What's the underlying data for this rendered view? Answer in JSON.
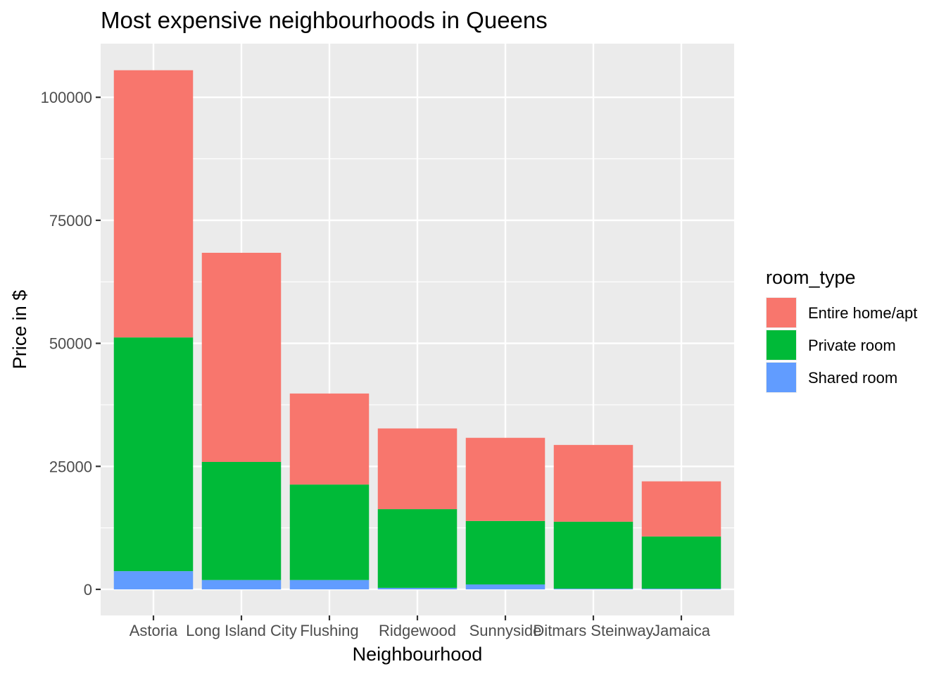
{
  "chart_data": {
    "type": "bar",
    "stacked": true,
    "title": "Most expensive neighbourhoods in Queens",
    "xlabel": "Neighbourhood",
    "ylabel": "Price in $",
    "categories": [
      "Astoria",
      "Long Island City",
      "Flushing",
      "Ridgewood",
      "Sunnyside",
      "Ditmars Steinway",
      "Jamaica"
    ],
    "series": [
      {
        "name": "Shared room",
        "color": "#619CFF",
        "values": [
          3700,
          1900,
          1900,
          300,
          1000,
          150,
          150
        ]
      },
      {
        "name": "Private room",
        "color": "#00BA38",
        "values": [
          47500,
          24000,
          19400,
          16000,
          12900,
          13600,
          10600
        ]
      },
      {
        "name": "Entire home/apt",
        "color": "#F8766D",
        "values": [
          54300,
          42500,
          18500,
          16400,
          16900,
          15600,
          11200
        ]
      }
    ],
    "yticks": [
      0,
      25000,
      50000,
      75000,
      100000
    ],
    "ylim": [
      -5300,
      110900
    ],
    "grid": true,
    "legend": {
      "title": "room_type",
      "position": "right",
      "entries": [
        "Entire home/apt",
        "Private room",
        "Shared room"
      ]
    }
  }
}
